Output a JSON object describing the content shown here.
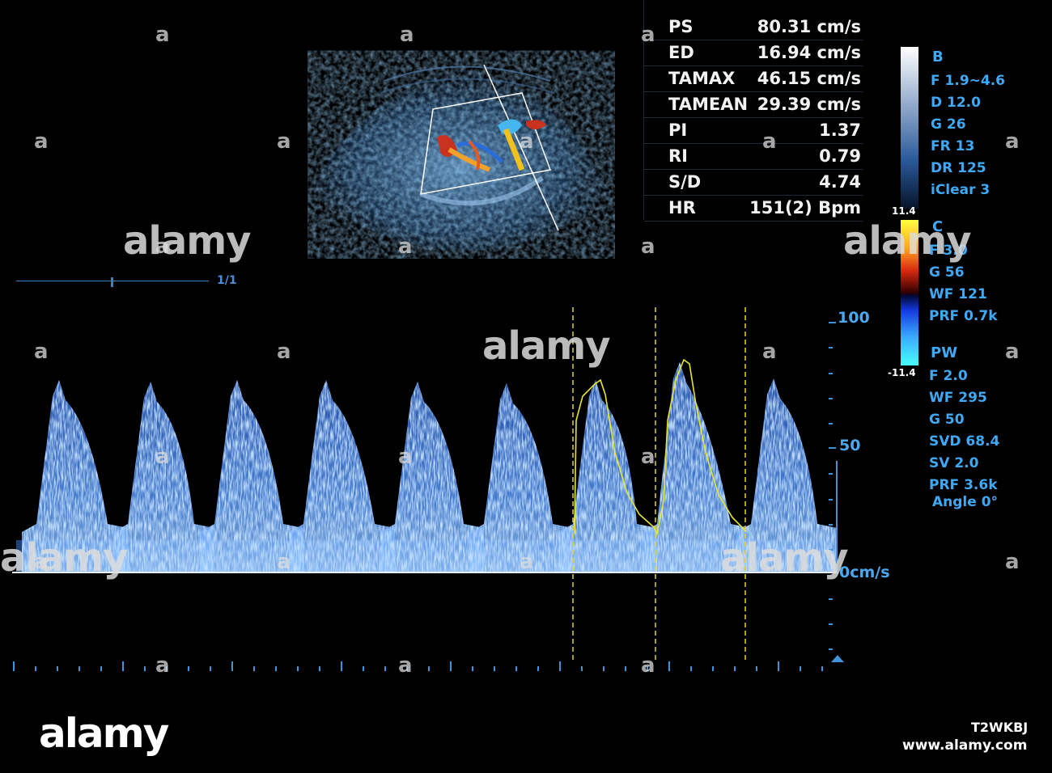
{
  "measurements": [
    {
      "label": "PS",
      "value": "80.31 cm/s"
    },
    {
      "label": "ED",
      "value": "16.94 cm/s"
    },
    {
      "label": "TAMAX",
      "value": "46.15 cm/s"
    },
    {
      "label": "TAMEAN",
      "value": "29.39 cm/s"
    },
    {
      "label": "PI",
      "value": "1.37"
    },
    {
      "label": "RI",
      "value": "0.79"
    },
    {
      "label": "S/D",
      "value": "4.74"
    },
    {
      "label": "HR",
      "value": "151(2) Bpm"
    }
  ],
  "b_mode": {
    "title": "B",
    "params": [
      "F 1.9~4.6",
      "D 12.0",
      "G 26",
      "FR 13",
      "DR 125",
      "iClear 3"
    ]
  },
  "color_mode": {
    "title": "C",
    "scale_max": "11.4",
    "scale_min": "-11.4",
    "params": [
      "F 3.0",
      "G 56",
      "WF 121",
      "PRF 0.7k"
    ]
  },
  "pw_mode": {
    "title": "PW",
    "params": [
      "F 2.0",
      "WF 295",
      "G 50",
      "SVD 68.4",
      "SV 2.0",
      "PRF 3.6k",
      "Angle  0°"
    ]
  },
  "velocity_scale": {
    "top": "100",
    "mid": "50",
    "baseline": "0cm/s"
  },
  "page_indicator": "1/1",
  "colors": {
    "spectrum": "#4f8ff0",
    "trace": "#e6e633",
    "cursor": "#e6d32a",
    "scale_text": "#3fa9f5"
  },
  "watermark": {
    "brand": "alamy",
    "mark": "a",
    "image_id": "T2WKBJ",
    "url": "www.alamy.com"
  }
}
